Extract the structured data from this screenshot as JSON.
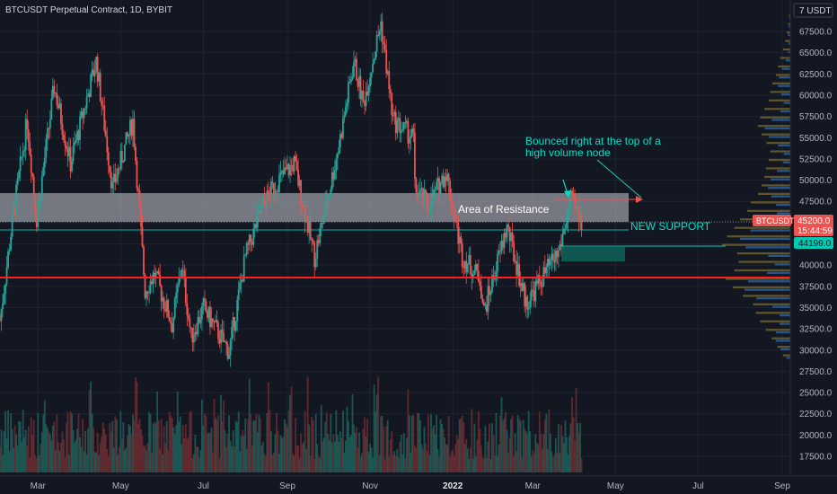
{
  "header": {
    "title": "BTCUSDT Perpetual Contract, 1D, BYBIT",
    "currency": "USDT"
  },
  "colors": {
    "background": "#131722",
    "bull": "#26a69a",
    "bear": "#ef5350",
    "grid": "#1f2330",
    "axis_text": "#b2b5be",
    "support_line": "#ff1f1f",
    "support_box": "#0e5f56",
    "resistance_box": "#c7c9cf",
    "annotation_text": "#00e0c6",
    "vol_profile_up": "#2962a3",
    "vol_profile_down": "#7a6a2e"
  },
  "annotations": {
    "resistance_label": "Area of Resistance",
    "support_label": "NEW SUPPORT",
    "bounce_note_line1": "Bounced right at the top of a",
    "bounce_note_line2": "high volume node"
  },
  "price_badges": {
    "symbol": "BTCUSDT",
    "price": "45200.0",
    "countdown": "15:44:59",
    "level": "44199.0"
  },
  "chart_data": {
    "type": "candlestick",
    "title": "BTCUSDT Perpetual Contract, 1D, BYBIT",
    "x_axis_labels": [
      "Mar",
      "May",
      "Jul",
      "Sep",
      "Nov",
      "2022",
      "Mar",
      "May",
      "Jul",
      "Sep"
    ],
    "y_axis_ticks": [
      17500,
      20000,
      22500,
      25000,
      27500,
      30000,
      32500,
      35000,
      37500,
      40000,
      42500,
      45000,
      47500,
      50000,
      52500,
      55000,
      57500,
      60000,
      62500,
      65000,
      67500
    ],
    "y_axis_tick_labels": [
      "17500.0",
      "20000.0",
      "22500.0",
      "25000.0",
      "27500.0",
      "30000.0",
      "32500.0",
      "35000.0",
      "37500.0",
      "40000.0",
      "42500.0",
      "45000.0",
      "47500.0",
      "50000.0",
      "52500.0",
      "55000.0",
      "57500.0",
      "60000.0",
      "62500.0",
      "65000.0",
      "67500.0"
    ],
    "ylim": [
      15000,
      70000
    ],
    "close_path": [
      [
        "2021-02-01",
        33500
      ],
      [
        "2021-02-10",
        45000
      ],
      [
        "2021-02-21",
        57000
      ],
      [
        "2021-02-28",
        45500
      ],
      [
        "2021-03-13",
        61000
      ],
      [
        "2021-03-25",
        52000
      ],
      [
        "2021-04-13",
        64000
      ],
      [
        "2021-04-25",
        49000
      ],
      [
        "2021-05-10",
        57000
      ],
      [
        "2021-05-19",
        37000
      ],
      [
        "2021-05-26",
        39000
      ],
      [
        "2021-06-08",
        33000
      ],
      [
        "2021-06-15",
        40000
      ],
      [
        "2021-06-22",
        31500
      ],
      [
        "2021-07-01",
        35000
      ],
      [
        "2021-07-20",
        29800
      ],
      [
        "2021-08-01",
        41000
      ],
      [
        "2021-08-14",
        47000
      ],
      [
        "2021-08-23",
        49500
      ],
      [
        "2021-09-06",
        52000
      ],
      [
        "2021-09-21",
        41000
      ],
      [
        "2021-10-01",
        48000
      ],
      [
        "2021-10-10",
        55000
      ],
      [
        "2021-10-20",
        64000
      ],
      [
        "2021-10-27",
        59000
      ],
      [
        "2021-11-09",
        68500
      ],
      [
        "2021-11-18",
        57000
      ],
      [
        "2021-12-03",
        55000
      ],
      [
        "2021-12-04",
        49000
      ],
      [
        "2021-12-14",
        47000
      ],
      [
        "2021-12-27",
        51000
      ],
      [
        "2022-01-08",
        41000
      ],
      [
        "2022-01-21",
        38500
      ],
      [
        "2022-01-24",
        34500
      ],
      [
        "2022-02-10",
        44500
      ],
      [
        "2022-02-24",
        35500
      ],
      [
        "2022-03-08",
        38500
      ],
      [
        "2022-03-20",
        41500
      ],
      [
        "2022-03-29",
        47500
      ],
      [
        "2022-04-06",
        45200
      ]
    ],
    "levels": {
      "resistance_zone": [
        44700,
        48500
      ],
      "support_level": 38800,
      "new_support_box": [
        41200,
        42600
      ],
      "bounce_high_line": 47800,
      "level_44199": 44199,
      "current_price": 45200
    },
    "volume_profile": {
      "bin_size": 500,
      "levels": [
        29000,
        30000,
        31000,
        32000,
        33000,
        34000,
        35000,
        36000,
        37000,
        38000,
        39000,
        40000,
        41000,
        42000,
        43000,
        44000,
        45000,
        46000,
        47000,
        48000,
        49000,
        50000,
        51000,
        52000,
        53000,
        54000,
        55000,
        56000,
        57000,
        58000,
        59000,
        60000,
        61000,
        62000,
        63000,
        64000,
        65000,
        66000,
        67000,
        68000,
        69000
      ],
      "widths": [
        0.1,
        0.18,
        0.26,
        0.34,
        0.42,
        0.48,
        0.52,
        0.66,
        0.8,
        0.9,
        0.78,
        0.72,
        0.74,
        0.95,
        0.88,
        0.78,
        0.7,
        0.6,
        0.55,
        0.45,
        0.4,
        0.36,
        0.34,
        0.3,
        0.28,
        0.33,
        0.4,
        0.45,
        0.42,
        0.36,
        0.3,
        0.28,
        0.25,
        0.2,
        0.17,
        0.14,
        0.1,
        0.07,
        0.05,
        0.03,
        0.02
      ]
    }
  }
}
